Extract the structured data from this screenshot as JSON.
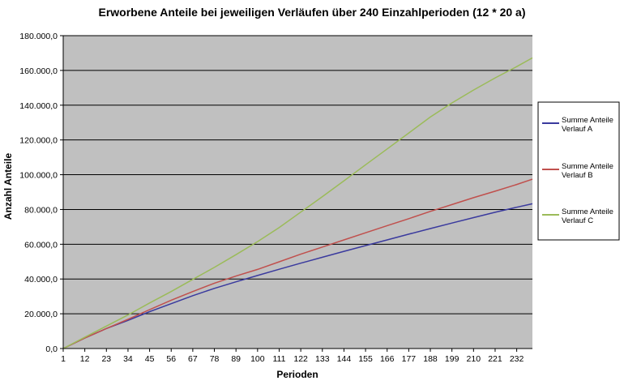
{
  "chart_data": {
    "type": "line",
    "title": "Erworbene Anteile bei jeweiligen Verläufen über 240 Einzahlperioden (12 * 20 a)",
    "xlabel": "Perioden",
    "ylabel": "Anzahl Anteile",
    "ylim": [
      0,
      180000
    ],
    "y_ticks": [
      "0,0",
      "20.000,0",
      "40.000,0",
      "60.000,0",
      "80.000,0",
      "100.000,0",
      "120.000,0",
      "140.000,0",
      "160.000,0",
      "180.000,0"
    ],
    "y_tick_values": [
      0,
      20000,
      40000,
      60000,
      80000,
      100000,
      120000,
      140000,
      160000,
      180000
    ],
    "x_ticks": [
      "1",
      "12",
      "23",
      "34",
      "45",
      "56",
      "67",
      "78",
      "89",
      "100",
      "111",
      "122",
      "133",
      "144",
      "155",
      "166",
      "177",
      "188",
      "199",
      "210",
      "221",
      "232"
    ],
    "x_tick_values": [
      1,
      12,
      23,
      34,
      45,
      56,
      67,
      78,
      89,
      100,
      111,
      122,
      133,
      144,
      155,
      166,
      177,
      188,
      199,
      210,
      221,
      232
    ],
    "xlim": [
      1,
      240
    ],
    "grid": "horizontal",
    "legend_position": "right",
    "plot_background": "#c0c0c0",
    "series": [
      {
        "name": "Summe Anteile Verlauf A",
        "color": "#3a3a9e",
        "x": [
          1,
          12,
          23,
          34,
          45,
          56,
          67,
          78,
          89,
          100,
          111,
          122,
          133,
          144,
          155,
          166,
          177,
          188,
          199,
          210,
          221,
          232,
          240
        ],
        "y": [
          0,
          6000,
          11500,
          16200,
          21200,
          25800,
          30400,
          34600,
          38400,
          42000,
          45600,
          49100,
          52500,
          55900,
          59200,
          62500,
          65800,
          69000,
          72200,
          75300,
          78400,
          81300,
          83300
        ]
      },
      {
        "name": "Summe Anteile Verlauf B",
        "color": "#c0504d",
        "x": [
          1,
          12,
          23,
          34,
          45,
          56,
          67,
          78,
          89,
          100,
          111,
          122,
          133,
          144,
          155,
          166,
          177,
          188,
          199,
          210,
          221,
          232,
          240
        ],
        "y": [
          0,
          6000,
          11500,
          16800,
          22400,
          27800,
          32800,
          37600,
          41700,
          45500,
          49900,
          54300,
          58400,
          62500,
          66600,
          70700,
          74700,
          78900,
          82800,
          86800,
          90500,
          94400,
          97400
        ]
      },
      {
        "name": "Summe Anteile Verlauf C",
        "color": "#9bbb59",
        "x": [
          1,
          12,
          23,
          34,
          45,
          56,
          67,
          78,
          89,
          100,
          111,
          122,
          133,
          144,
          155,
          166,
          177,
          188,
          199,
          210,
          221,
          232,
          240
        ],
        "y": [
          0,
          6500,
          12900,
          19300,
          26200,
          32800,
          39800,
          46700,
          54000,
          61500,
          69600,
          78500,
          87400,
          96500,
          105700,
          114800,
          124000,
          133200,
          141300,
          148700,
          155700,
          162200,
          167200
        ]
      }
    ]
  }
}
